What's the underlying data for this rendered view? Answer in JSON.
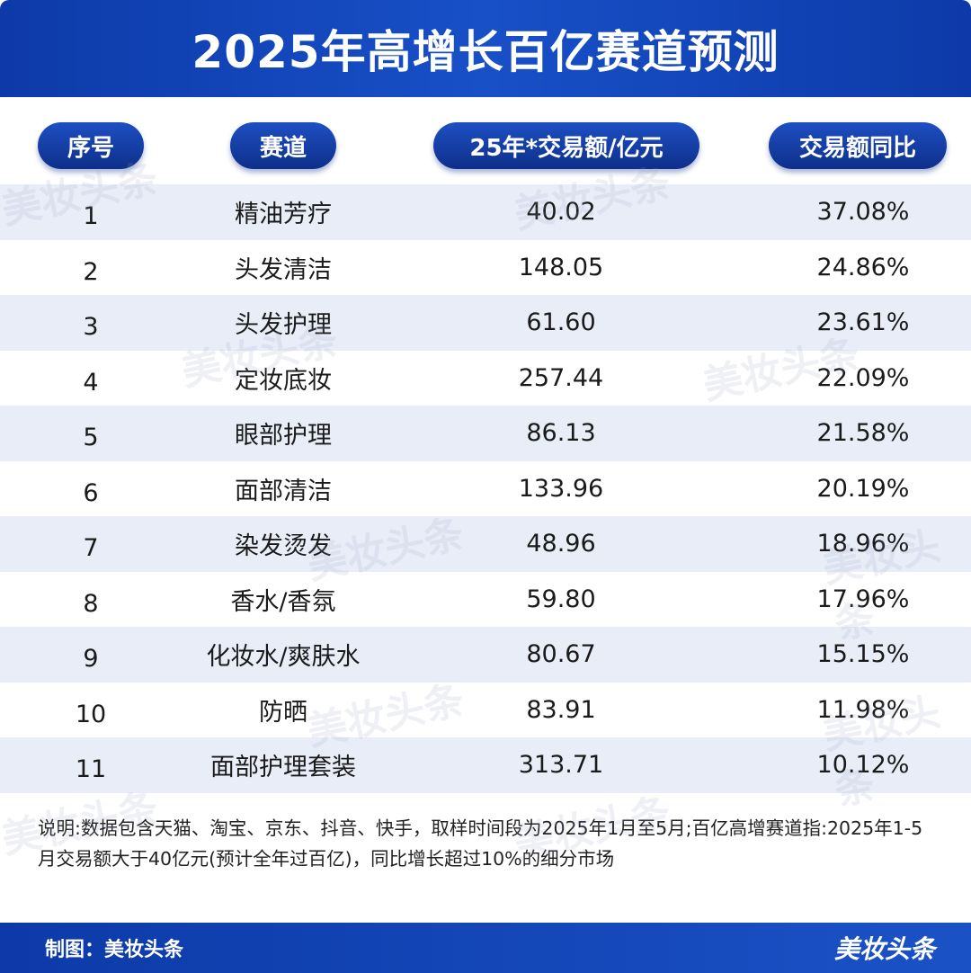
{
  "title": "2025年高增长百亿赛道预测",
  "headers": {
    "index": "序号",
    "track": "赛道",
    "value": "25年*交易额/亿元",
    "yoy": "交易额同比"
  },
  "chart_data": {
    "type": "table",
    "columns": [
      "序号",
      "赛道",
      "25年*交易额/亿元",
      "交易额同比"
    ],
    "rows": [
      {
        "index": "1",
        "track": "精油芳疗",
        "value": "40.02",
        "yoy": "37.08%"
      },
      {
        "index": "2",
        "track": "头发清洁",
        "value": "148.05",
        "yoy": "24.86%"
      },
      {
        "index": "3",
        "track": "头发护理",
        "value": "61.60",
        "yoy": "23.61%"
      },
      {
        "index": "4",
        "track": "定妆底妆",
        "value": "257.44",
        "yoy": "22.09%"
      },
      {
        "index": "5",
        "track": "眼部护理",
        "value": "86.13",
        "yoy": "21.58%"
      },
      {
        "index": "6",
        "track": "面部清洁",
        "value": "133.96",
        "yoy": "20.19%"
      },
      {
        "index": "7",
        "track": "染发烫发",
        "value": "48.96",
        "yoy": "18.96%"
      },
      {
        "index": "8",
        "track": "香水/香氛",
        "value": "59.80",
        "yoy": "17.96%"
      },
      {
        "index": "9",
        "track": "化妆水/爽肤水",
        "value": "80.67",
        "yoy": "15.15%"
      },
      {
        "index": "10",
        "track": "防晒",
        "value": "83.91",
        "yoy": "11.98%"
      },
      {
        "index": "11",
        "track": "面部护理套装",
        "value": "313.71",
        "yoy": "10.12%"
      }
    ]
  },
  "note": "说明:数据包含天猫、淘宝、京东、抖音、快手，取样时间段为2025年1月至5月;百亿高增赛道指:2025年1-5月交易额大于40亿元(预计全年过百亿)，同比增长超过10%的细分市场",
  "footer": {
    "credit": "制图：美妆头条",
    "brand": "美妆头条"
  },
  "watermark": "美妆头条",
  "colors": {
    "primary": "#0d3aa8",
    "row_alt": "#e9edf8"
  }
}
